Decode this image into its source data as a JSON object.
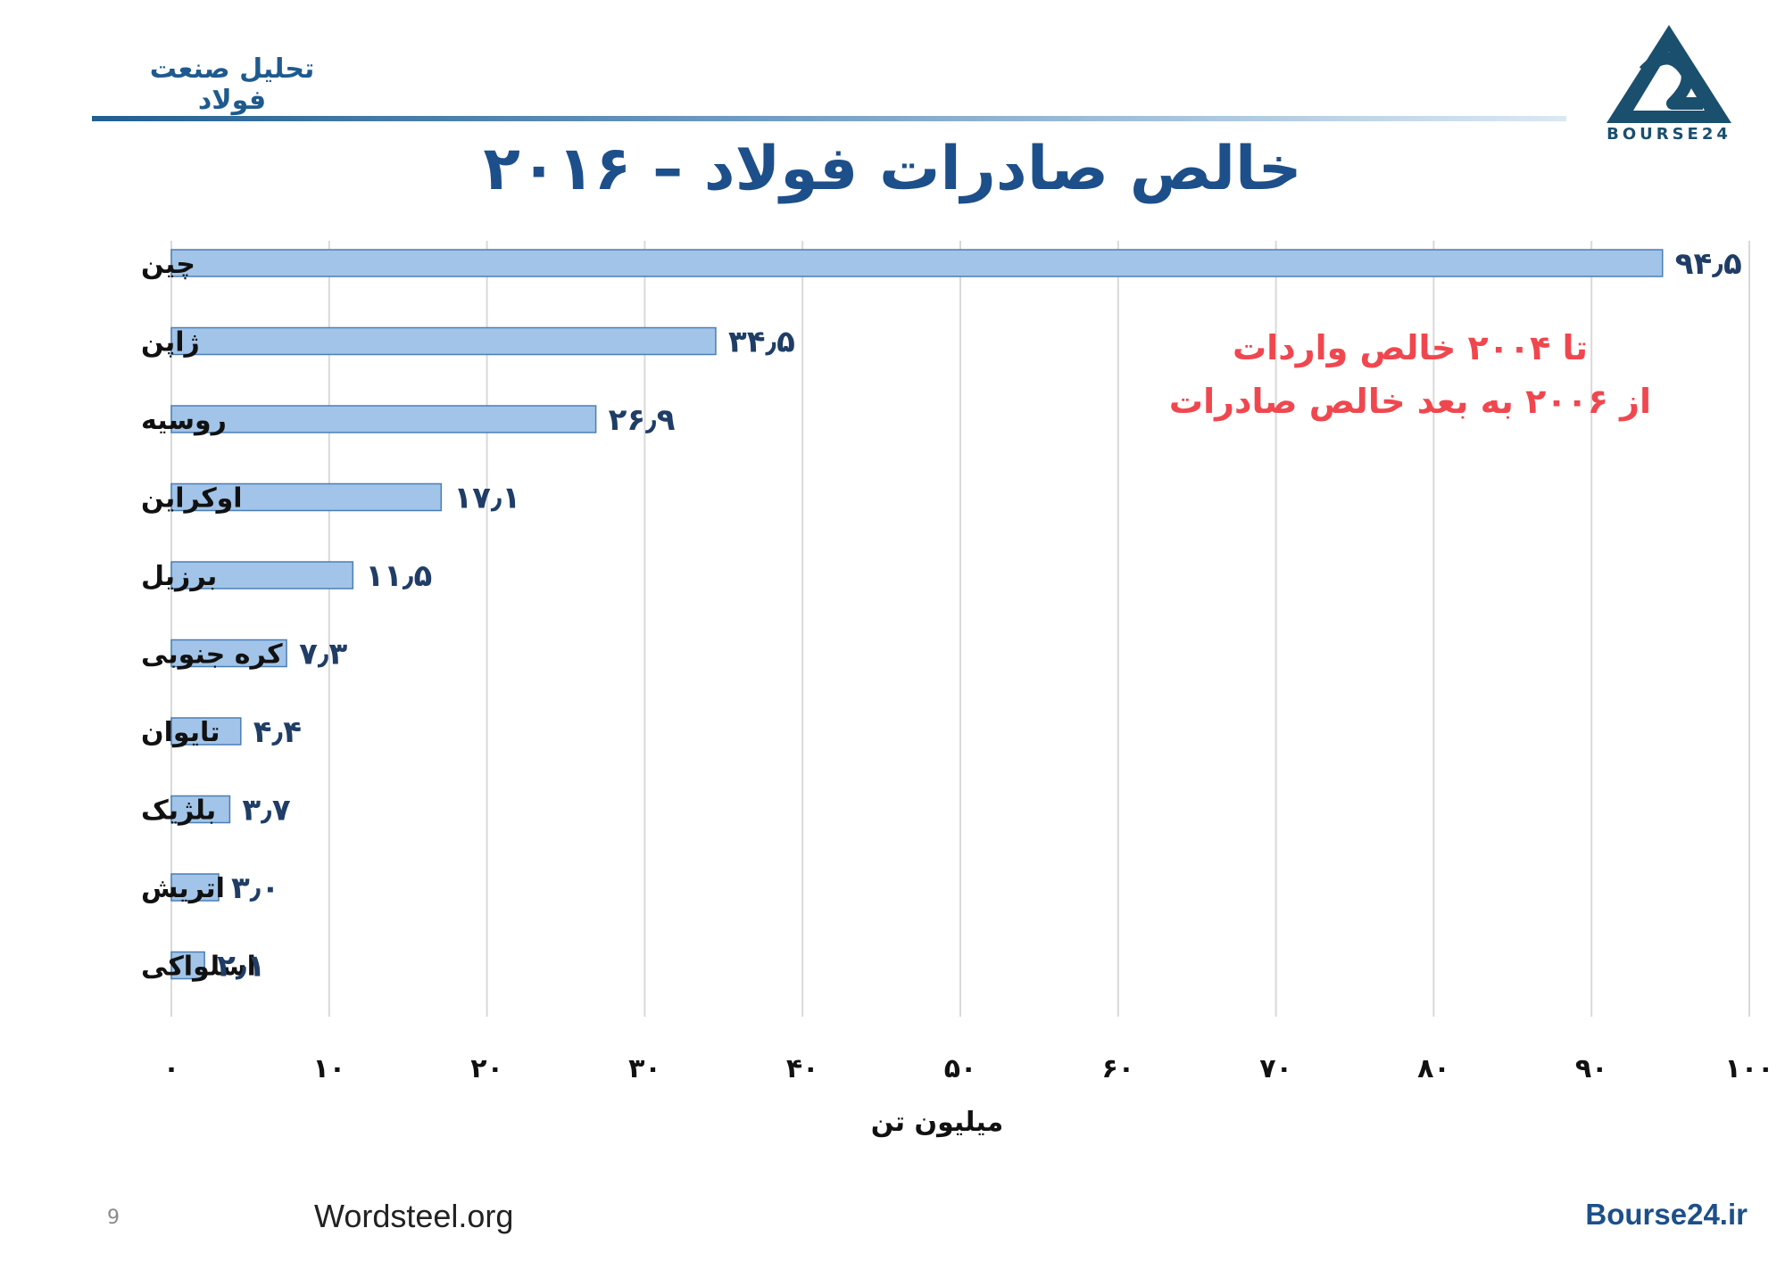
{
  "header": {
    "title": "تحلیل صنعت فولاد",
    "logo_text": "BOURSE24"
  },
  "annotation": {
    "line1": "تا ۲۰۰۴ خالص واردات",
    "line2": "از ۲۰۰۶ به بعد خالص صادرات"
  },
  "footer": {
    "page_number": "9",
    "source": "Wordsteel.org",
    "site": "Bourse24.ir"
  },
  "colors": {
    "bar_fill": "#a2c4e8",
    "bar_stroke": "#4a7fb5",
    "title": "#1d4f8a",
    "value_label": "#1f3d66",
    "annotation": "#f0474f",
    "grid": "#d9d9d9"
  },
  "chart_data": {
    "type": "bar",
    "orientation": "horizontal",
    "title": "خالص صادرات فولاد – ۲۰۱۶",
    "xlabel": "میلیون تن",
    "ylabel": "",
    "xlim": [
      0,
      100
    ],
    "grid": true,
    "categories": [
      "چین",
      "ژاپن",
      "روسیه",
      "اوکراین",
      "برزیل",
      "کره جنوبی",
      "تایوان",
      "بلژیک",
      "اتریش",
      "اسلواکی"
    ],
    "values": [
      94.5,
      34.5,
      26.9,
      17.1,
      11.5,
      7.3,
      4.4,
      3.7,
      3.0,
      2.1
    ],
    "value_labels": [
      "۹۴٫۵",
      "۳۴٫۵",
      "۲۶٫۹",
      "۱۷٫۱",
      "۱۱٫۵",
      "۷٫۳",
      "۴٫۴",
      "۳٫۷",
      "۳٫۰",
      "۲٫۱"
    ],
    "ticks": [
      0,
      10,
      20,
      30,
      40,
      50,
      60,
      70,
      80,
      90,
      100
    ],
    "tick_labels": [
      "۰",
      "۱۰",
      "۲۰",
      "۳۰",
      "۴۰",
      "۵۰",
      "۶۰",
      "۷۰",
      "۸۰",
      "۹۰",
      "۱۰۰"
    ]
  }
}
